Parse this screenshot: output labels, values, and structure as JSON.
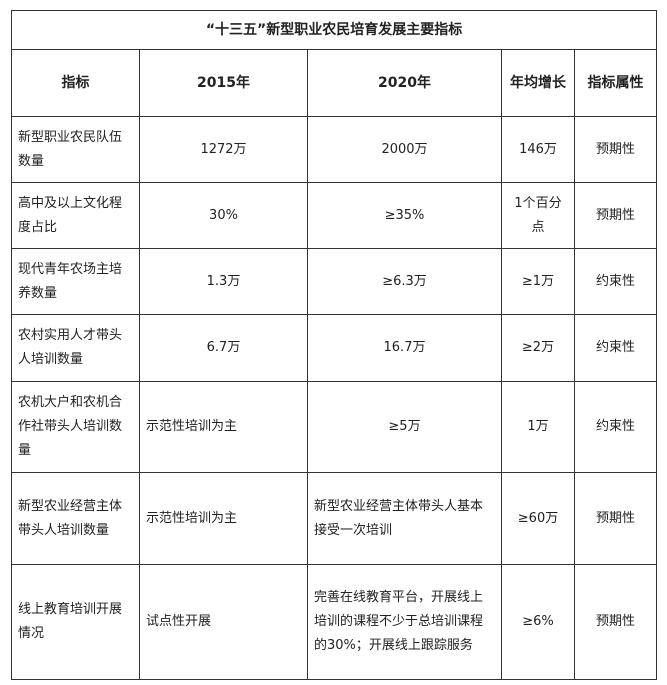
{
  "title": "“十三五”新型职业农民培育发展主要指标",
  "headers": [
    "指标",
    "2015年",
    "2020年",
    "年均增长",
    "指标属性"
  ],
  "rows": [
    {
      "indicator": "新型职业农民队伍数量",
      "y2015": "1272万",
      "y2020": "2000万",
      "growth": "146万",
      "attribute": "预期性"
    },
    {
      "indicator": "高中及以上文化程度占比",
      "y2015": "30%",
      "y2020": "≥35%",
      "growth": "1个百分点",
      "attribute": "预期性"
    },
    {
      "indicator": "现代青年农场主培养数量",
      "y2015": "1.3万",
      "y2020": "≥6.3万",
      "growth": "≥1万",
      "attribute": "约束性"
    },
    {
      "indicator": "农村实用人才带头人培训数量",
      "y2015": "6.7万",
      "y2020": "16.7万",
      "growth": "≥2万",
      "attribute": "约束性"
    },
    {
      "indicator": "农机大户和农机合作社带头人培训数量",
      "y2015": "示范性培训为主",
      "y2020": "≥5万",
      "growth": "1万",
      "attribute": "约束性"
    },
    {
      "indicator": "新型农业经营主体带头人培训数量",
      "y2015": "示范性培训为主",
      "y2020": "新型农业经营主体带头人基本接受一次培训",
      "growth": "≥60万",
      "attribute": "预期性"
    },
    {
      "indicator": "线上教育培训开展情况",
      "y2015": "试点性开展",
      "y2020": "完善在线教育平台，开展线上培训的课程不少于总培训课程的30%；开展线上跟踪服务",
      "growth": "≥6%",
      "attribute": "预期性"
    }
  ]
}
